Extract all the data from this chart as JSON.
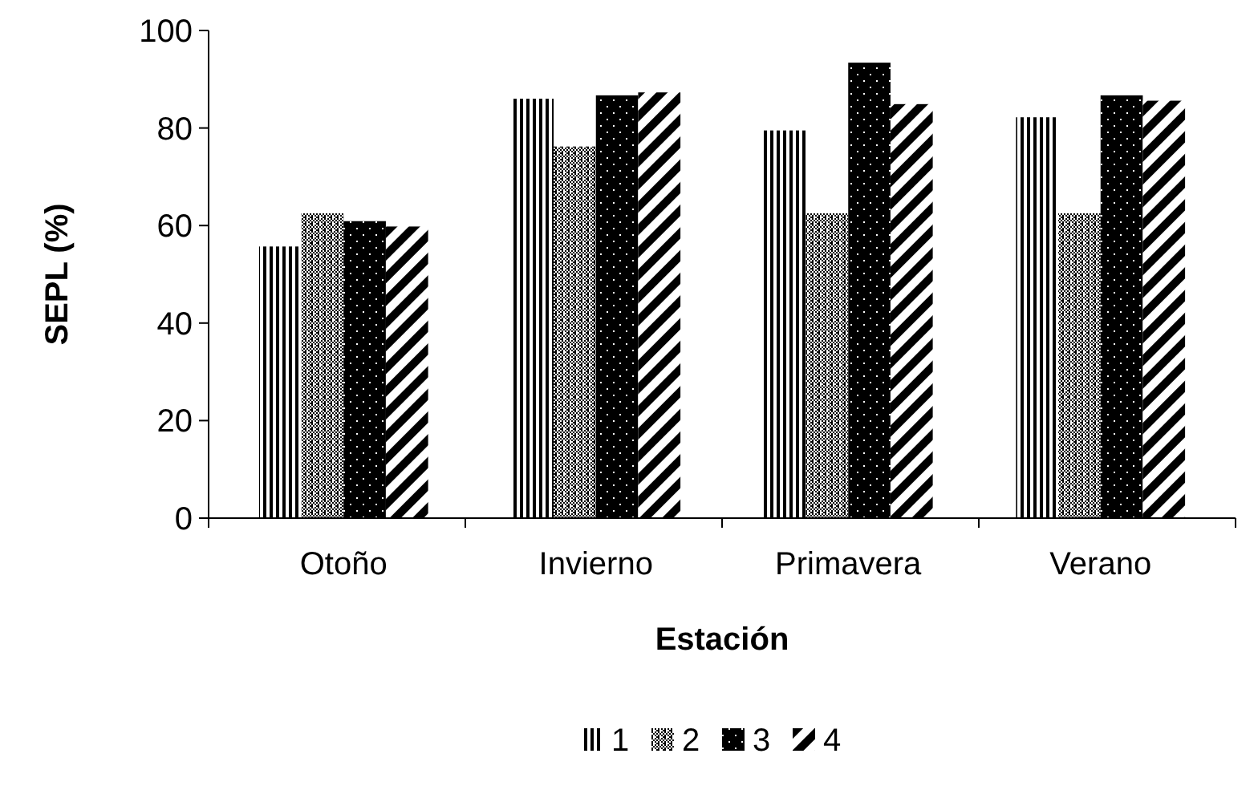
{
  "chart_data": {
    "type": "bar",
    "xlabel": "Estación",
    "ylabel": "SEPL (%)",
    "categories": [
      "Otoño",
      "Invierno",
      "Primavera",
      "Verano"
    ],
    "series": [
      {
        "name": "1",
        "color": "#000000",
        "values": [
          55.7,
          86,
          79.5,
          82.2
        ]
      },
      {
        "name": "2",
        "color": "#000000",
        "values": [
          62.5,
          76.2,
          62.5,
          62.5
        ]
      },
      {
        "name": "3",
        "color": "#000000",
        "values": [
          60.9,
          86.7,
          93.4,
          86.7
        ]
      },
      {
        "name": "4",
        "color": "#000000",
        "values": [
          59.8,
          87.3,
          84.9,
          85.6
        ]
      }
    ],
    "ylim": [
      0,
      100
    ],
    "yticks": [
      0,
      20,
      40,
      60,
      80,
      100
    ],
    "grid": false,
    "legend": "bottom"
  }
}
